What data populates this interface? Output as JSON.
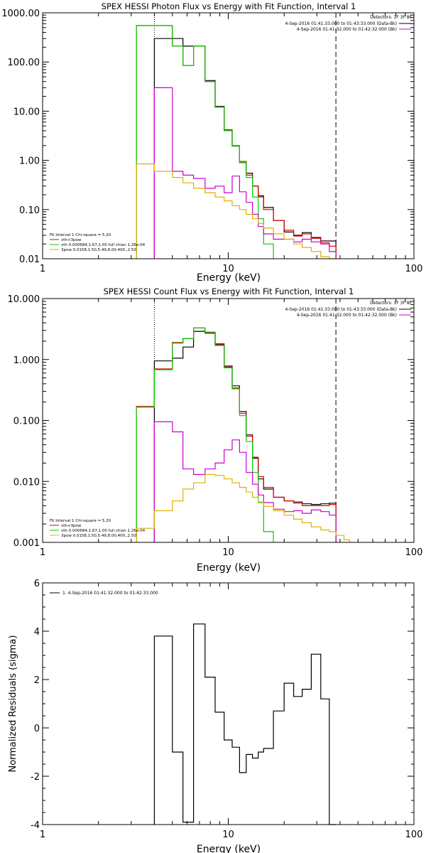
{
  "chart_data": [
    {
      "type": "line",
      "title": "SPEX HESSI Photon Flux vs Energy with Fit Function, Interval 1",
      "xlabel": "Energy (keV)",
      "ylabel": "",
      "xscale": "log",
      "yscale": "log",
      "xlim": [
        1,
        100
      ],
      "ylim": [
        0.01,
        1000
      ],
      "x_tick_labels": [
        "1",
        "10",
        "100"
      ],
      "y_tick_labels": [
        "0.01",
        "0.10",
        "1.00",
        "10.00",
        "100.00",
        "1000.00"
      ],
      "grid": false,
      "legend_position": "top-right",
      "legend_header": "Detectors: 1F 3F 8F",
      "legend": [
        {
          "text": "4-Sep-2016 01:41:33.000 to 01:43:33.000 (Data-Bk)",
          "color": "#000000"
        },
        {
          "text": "4-Sep-2016 01:41:32.000 to 01:42:32.000 (Bk)",
          "color": "#cc00cc"
        }
      ],
      "fit_legend_position": "bottom-left",
      "fit_legend": [
        {
          "text": "Fit Interval 1   Chi-square = 5.20",
          "color": "#000000"
        },
        {
          "text": "vth+3pow",
          "color": "#dd0000"
        },
        {
          "text": "vth 0.000684,1.67,1.00  full chian 1.26e-04",
          "color": "#00cc00"
        },
        {
          "text": "3pow 0.0158,1.50,5.49,8.00,400.,2.50",
          "color": "#e0b000"
        }
      ],
      "vlines": [
        {
          "x": 4,
          "style": "dotted"
        },
        {
          "x": 38,
          "style": "dashed"
        }
      ],
      "series": [
        {
          "color": "#000000",
          "step": true,
          "x": [
            4,
            5,
            5.7,
            6.5,
            7.5,
            8.5,
            9.5,
            10.5,
            11.5,
            12.5,
            13.5,
            14.5,
            15.5,
            17.5,
            20,
            22.5,
            25,
            28,
            31.5,
            35,
            38
          ],
          "y": [
            300,
            300,
            210,
            210,
            42,
            12.5,
            4,
            1.95,
            0.9,
            0.55,
            0.3,
            0.19,
            0.11,
            0.06,
            0.035,
            0.03,
            0.034,
            0.027,
            0.023,
            0.023,
            0.01
          ]
        },
        {
          "color": "#dd0000",
          "step": true,
          "x": [
            3.2,
            4,
            5,
            5.7,
            6.5,
            7.5,
            8.5,
            9.5,
            10.5,
            11.5,
            12.5,
            13.5,
            14.5,
            15.5,
            17.5,
            20,
            22.5,
            25,
            28,
            31.5,
            35,
            38
          ],
          "y": [
            550,
            550,
            210,
            85,
            210,
            40,
            12,
            4.2,
            2,
            0.95,
            0.5,
            0.3,
            0.18,
            0.1,
            0.06,
            0.038,
            0.029,
            0.032,
            0.026,
            0.021,
            0.018,
            0.01
          ]
        },
        {
          "color": "#00cc00",
          "step": true,
          "x": [
            3.2,
            4,
            5,
            5.7,
            6.5,
            7.5,
            8.5,
            9.5,
            10.5,
            11.5,
            12.5,
            13.5,
            14.5,
            15.5,
            17.5
          ],
          "y": [
            550,
            550,
            210,
            85,
            210,
            40,
            12,
            4,
            1.95,
            0.9,
            0.45,
            0.18,
            0.065,
            0.02,
            0.01
          ]
        },
        {
          "color": "#cc00cc",
          "step": true,
          "x": [
            4,
            5,
            5.7,
            6.5,
            7.5,
            8.5,
            9.5,
            10.5,
            11.5,
            12.5,
            13.5,
            14.5,
            15.5,
            17.5,
            20,
            22.5,
            25,
            28,
            31.5,
            35,
            38
          ],
          "y": [
            30,
            0.6,
            0.5,
            0.43,
            0.27,
            0.3,
            0.22,
            0.48,
            0.23,
            0.14,
            0.08,
            0.045,
            0.032,
            0.025,
            0.025,
            0.022,
            0.025,
            0.022,
            0.02,
            0.014,
            0.01
          ]
        },
        {
          "color": "#e0b000",
          "step": true,
          "x": [
            3.2,
            4,
            5,
            5.7,
            6.5,
            7.5,
            8.5,
            9.5,
            10.5,
            11.5,
            12.5,
            13.5,
            14.5,
            15.5,
            17.5,
            20,
            22.5,
            25,
            28,
            31.5,
            35,
            38
          ],
          "y": [
            0.85,
            0.6,
            0.45,
            0.35,
            0.27,
            0.22,
            0.18,
            0.15,
            0.12,
            0.1,
            0.08,
            0.065,
            0.052,
            0.042,
            0.032,
            0.025,
            0.02,
            0.017,
            0.014,
            0.011,
            0.01,
            0.01
          ]
        }
      ]
    },
    {
      "type": "line",
      "title": "SPEX HESSI Count Flux vs Energy with Fit Function, Interval 1",
      "xlabel": "Energy (keV)",
      "ylabel": "",
      "xscale": "log",
      "yscale": "log",
      "xlim": [
        1,
        100
      ],
      "ylim": [
        0.001,
        10
      ],
      "x_tick_labels": [
        "1",
        "10",
        "100"
      ],
      "y_tick_labels": [
        "0.001",
        "0.010",
        "0.100",
        "1.000",
        "10.000"
      ],
      "grid": false,
      "legend_position": "top-right",
      "legend_header": "Detectors: 1F 3F 8F",
      "legend": [
        {
          "text": "4-Sep-2016 01:41:33.000 to 01:43:33.000 (Data-Bk)",
          "color": "#000000"
        },
        {
          "text": "4-Sep-2016 01:41:32.000 to 01:42:32.000 (Bk)",
          "color": "#cc00cc"
        }
      ],
      "fit_legend_position": "bottom-left",
      "fit_legend": [
        {
          "text": "Fit Interval 1   Chi-square = 5.20",
          "color": "#000000"
        },
        {
          "text": "vth+3pow",
          "color": "#dd0000"
        },
        {
          "text": "vth 0.000684,1.67,1.00  full chian 1.26e-04",
          "color": "#00cc00"
        },
        {
          "text": "3pow 0.0158,1.50,5.49,8.00,400.,2.50",
          "color": "#e0b000"
        }
      ],
      "vlines": [
        {
          "x": 4,
          "style": "dotted"
        },
        {
          "x": 38,
          "style": "dashed"
        }
      ],
      "series": [
        {
          "color": "#000000",
          "step": true,
          "x": [
            4,
            5,
            5.7,
            6.5,
            7.5,
            8.5,
            9.5,
            10.5,
            11.5,
            12.5,
            13.5,
            14.5,
            15.5,
            17.5,
            20,
            22.5,
            25,
            28,
            31.5,
            35,
            38
          ],
          "y": [
            0.95,
            1.05,
            1.6,
            2.9,
            2.7,
            1.8,
            0.78,
            0.37,
            0.14,
            0.058,
            0.024,
            0.011,
            0.0075,
            0.0055,
            0.0048,
            0.0046,
            0.0043,
            0.0042,
            0.0043,
            0.0044,
            0.001
          ]
        },
        {
          "color": "#dd0000",
          "step": true,
          "x": [
            3.2,
            4,
            5,
            5.7,
            6.5,
            7.5,
            8.5,
            9.5,
            10.5,
            11.5,
            12.5,
            13.5,
            14.5,
            15.5,
            17.5,
            20,
            22.5,
            25,
            28,
            31.5,
            35,
            38
          ],
          "y": [
            0.17,
            0.7,
            1.9,
            2.2,
            3.3,
            2.8,
            1.75,
            0.75,
            0.34,
            0.13,
            0.055,
            0.025,
            0.012,
            0.008,
            0.0055,
            0.0048,
            0.0044,
            0.004,
            0.004,
            0.004,
            0.0042,
            0.001
          ]
        },
        {
          "color": "#00cc00",
          "step": true,
          "x": [
            3.2,
            4,
            5,
            5.7,
            6.5,
            7.5,
            8.5,
            9.5,
            10.5,
            11.5,
            12.5,
            13.5,
            14.5,
            15.5,
            17.5
          ],
          "y": [
            0.165,
            0.68,
            1.85,
            2.2,
            3.3,
            2.75,
            1.7,
            0.73,
            0.33,
            0.12,
            0.045,
            0.014,
            0.0045,
            0.0015,
            0.001
          ]
        },
        {
          "color": "#cc00cc",
          "step": true,
          "x": [
            4,
            5,
            5.7,
            6.5,
            7.5,
            8.5,
            9.5,
            10.5,
            11.5,
            12.5,
            13.5,
            14.5,
            15.5,
            17.5,
            20,
            22.5,
            25,
            28,
            31.5,
            35,
            38
          ],
          "y": [
            0.095,
            0.065,
            0.016,
            0.013,
            0.016,
            0.02,
            0.033,
            0.048,
            0.03,
            0.014,
            0.009,
            0.006,
            0.0045,
            0.0035,
            0.0032,
            0.0033,
            0.003,
            0.0034,
            0.0032,
            0.0028,
            0.001
          ]
        },
        {
          "color": "#e0b000",
          "step": true,
          "x": [
            3.2,
            4,
            5,
            5.7,
            6.5,
            7.5,
            8.5,
            9.5,
            10.5,
            11.5,
            12.5,
            13.5,
            14.5,
            15.5,
            17.5,
            20,
            22.5,
            25,
            28,
            31.5,
            35,
            38,
            42,
            45
          ],
          "y": [
            0.0017,
            0.0033,
            0.0048,
            0.0075,
            0.0095,
            0.013,
            0.0125,
            0.011,
            0.0095,
            0.008,
            0.0067,
            0.0055,
            0.0046,
            0.0039,
            0.0033,
            0.0028,
            0.0024,
            0.0021,
            0.0018,
            0.0016,
            0.0015,
            0.0013,
            0.0011,
            0.001
          ]
        }
      ]
    },
    {
      "type": "line",
      "title": "",
      "xlabel": "Energy (keV)",
      "ylabel": "Normalized Residuals (sigma)",
      "xscale": "log",
      "yscale": "linear",
      "xlim": [
        1,
        100
      ],
      "ylim": [
        -4,
        6
      ],
      "x_tick_labels": [
        "1",
        "10",
        "100"
      ],
      "y_tick_labels": [
        "-4",
        "-2",
        "0",
        "2",
        "4",
        "6"
      ],
      "grid": false,
      "legend_position": "top-left",
      "legend": [
        {
          "text": "1.  4-Sep-2016 01:41:32.000 to 01:42:33.000",
          "color": "#000000"
        }
      ],
      "series": [
        {
          "color": "#000000",
          "step": true,
          "x": [
            4,
            5,
            5.7,
            6.5,
            7.5,
            8.5,
            9.5,
            10.5,
            11.5,
            12.5,
            13.5,
            14.5,
            15.5,
            17.5,
            20,
            22.5,
            25,
            28,
            31.5,
            35,
            38
          ],
          "y": [
            3.8,
            -1,
            -3.9,
            4.3,
            2.1,
            0.65,
            -0.5,
            -0.8,
            -1.85,
            -1.1,
            -1.25,
            -1,
            -0.85,
            0.7,
            1.85,
            1.3,
            1.6,
            3.05,
            1.2,
            -4,
            -4
          ]
        }
      ]
    }
  ]
}
